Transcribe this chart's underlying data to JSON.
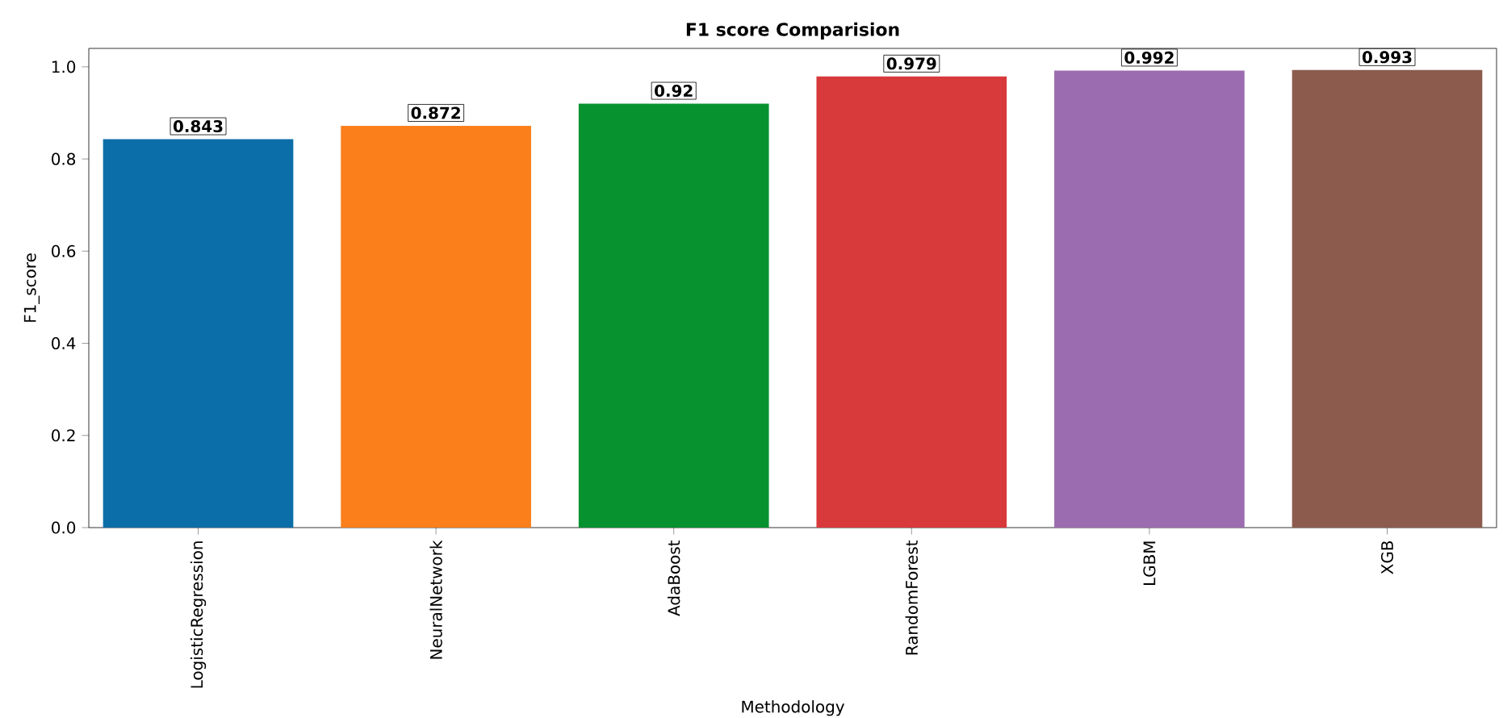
{
  "chart_data": {
    "type": "bar",
    "title": "F1 score Comparision",
    "xlabel": "Methodology",
    "ylabel": "F1_score",
    "categories": [
      "LogisticRegression",
      "NeuralNetwork",
      "AdaBoost",
      "RandomForest",
      "LGBM",
      "XGB"
    ],
    "values": [
      0.843,
      0.872,
      0.92,
      0.979,
      0.992,
      0.993
    ],
    "colors": [
      "#0c6ea8",
      "#fb7f1b",
      "#07922f",
      "#d8393b",
      "#9b6db0",
      "#8c5b4e"
    ],
    "ylim": [
      0,
      1.04
    ],
    "yticks": [
      {
        "value": 0,
        "label": "0.0"
      },
      {
        "value": 0.2,
        "label": "0.2"
      },
      {
        "value": 0.4,
        "label": "0.4"
      },
      {
        "value": 0.6,
        "label": "0.6"
      },
      {
        "value": 0.8,
        "label": "0.8"
      },
      {
        "value": 1.0,
        "label": "1.0"
      }
    ],
    "data_labels": true,
    "grid": false
  }
}
